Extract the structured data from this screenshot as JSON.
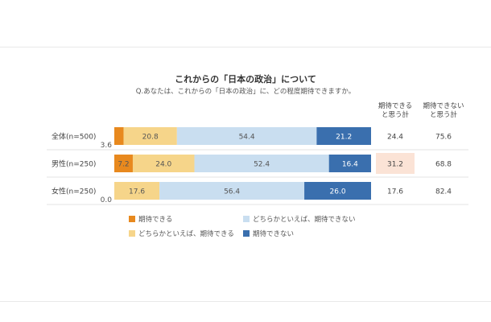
{
  "chart_data": {
    "type": "bar",
    "orientation": "horizontal",
    "stacked": true,
    "title": "これからの「日本の政治」について",
    "subtitle": "Q.あなたは、これからの「日本の政治」に、どの程度期待できますか。",
    "categories": [
      "全体(n=500)",
      "男性(n=250)",
      "女性(n=250)"
    ],
    "series": [
      {
        "name": "期待できる",
        "color": "#e8891e",
        "values": [
          3.6,
          7.2,
          0.0
        ],
        "label_color": "#555555"
      },
      {
        "name": "どちらかといえば、期待できる",
        "color": "#f6d58a",
        "values": [
          20.8,
          24.0,
          17.6
        ],
        "label_color": "#555555"
      },
      {
        "name": "どちらかといえば、期待できない",
        "color": "#c9def0",
        "values": [
          54.4,
          52.4,
          56.4
        ],
        "label_color": "#555555"
      },
      {
        "name": "期待できない",
        "color": "#3a6fae",
        "values": [
          21.2,
          16.4,
          26.0
        ],
        "label_color": "#ffffff"
      }
    ],
    "xlim": [
      0,
      100
    ],
    "legend_position": "bottom",
    "grid": false,
    "totals": [
      {
        "name": "期待できると思う計",
        "values": [
          24.4,
          31.2,
          17.6
        ]
      },
      {
        "name": "期待できないと思う計",
        "values": [
          75.6,
          68.8,
          82.4
        ]
      }
    ],
    "highlight": {
      "color": "#fbe3d6"
    }
  },
  "columns": {
    "positive_header_line1": "期待できる",
    "positive_header_line2": "と思う計",
    "negative_header_line1": "期待できない",
    "negative_header_line2": "と思う計"
  }
}
